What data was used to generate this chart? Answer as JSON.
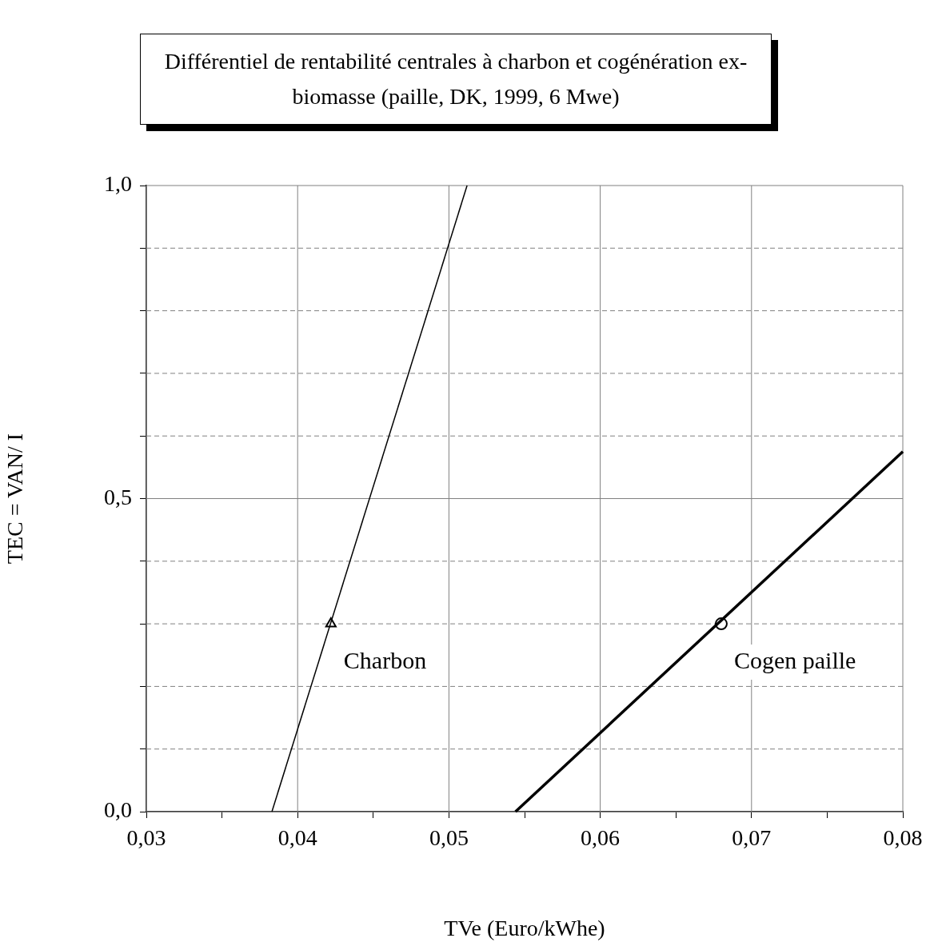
{
  "chart_data": {
    "type": "line",
    "title": "Différentiel de rentabilité centrales à charbon et cogénération ex-biomasse (paille, DK, 1999, 6 Mwe)",
    "xlabel": "TVe (Euro/kWhe)",
    "ylabel": "TEC = VAN/ I",
    "series": [
      {
        "type": "line",
        "color": "#000000",
        "x": [
          0.0383,
          0.0512
        ],
        "values": [
          0,
          1.0
        ],
        "marker": "none"
      },
      {
        "type": "scatter",
        "name": "Charbon",
        "color": "#000000",
        "x": [
          0.0422
        ],
        "values": [
          0.3
        ],
        "marker": "triangle"
      },
      {
        "type": "line",
        "color": "#000000",
        "x": [
          0.0544,
          0.08
        ],
        "values": [
          0,
          0.575
        ],
        "marker": "none"
      },
      {
        "type": "scatter",
        "name": "Cogen paille",
        "color": "#000000",
        "x": [
          0.068
        ],
        "values": [
          0.3
        ],
        "marker": "circle"
      }
    ],
    "xlim": [
      0.03,
      0.08
    ],
    "xticks": [
      {
        "value": 0.03,
        "label": "0,03"
      },
      {
        "value": 0.035,
        "label": null
      },
      {
        "value": 0.04,
        "label": "0,04"
      },
      {
        "value": 0.045,
        "label": null
      },
      {
        "value": 0.05,
        "label": "0,05"
      },
      {
        "value": 0.055,
        "label": null
      },
      {
        "value": 0.06,
        "label": "0,06"
      },
      {
        "value": 0.065,
        "label": null
      },
      {
        "value": 0.07,
        "label": "0,07"
      },
      {
        "value": 0.075,
        "label": null
      },
      {
        "value": 0.08,
        "label": "0,08"
      }
    ],
    "ylim": [
      0,
      1.0
    ],
    "yticks": [
      {
        "value": 0,
        "label": "0,0"
      },
      {
        "value": 0.1,
        "label": null
      },
      {
        "value": 0.2,
        "label": null
      },
      {
        "value": 0.3,
        "label": null
      },
      {
        "value": 0.4,
        "label": null
      },
      {
        "value": 0.5,
        "label": "0,5"
      },
      {
        "value": 0.6,
        "label": null
      },
      {
        "value": 0.7,
        "label": null
      },
      {
        "value": 0.8,
        "label": null
      },
      {
        "value": 0.9,
        "label": null
      },
      {
        "value": 1.0,
        "label": "1,0"
      }
    ],
    "grid": true,
    "legend": false
  }
}
